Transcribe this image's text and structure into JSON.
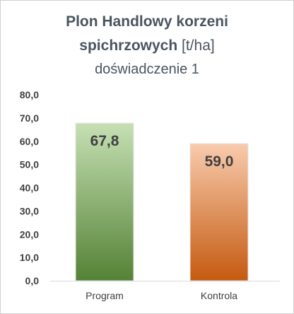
{
  "chart_data": {
    "type": "bar",
    "title_line1": "Plon Handlowy korzeni",
    "title_line2_bold": "spichrzowych",
    "title_line2_unit": " [t/ha]",
    "subtitle": "doświadczenie 1",
    "categories": [
      "Program",
      "Kontrola"
    ],
    "values": [
      67.8,
      59.0
    ],
    "value_labels": [
      "67,8",
      "59,0"
    ],
    "y_ticks": [
      "0,0",
      "10,0",
      "20,0",
      "30,0",
      "40,0",
      "50,0",
      "60,0",
      "70,0",
      "80,0"
    ],
    "ylim": [
      0,
      80
    ],
    "grid": false,
    "legend": "none",
    "colors": {
      "program_top": "#c6e0b4",
      "program_bottom": "#548235",
      "kontrola_top": "#f8cbad",
      "kontrola_bottom": "#c55a11",
      "text": "#404040",
      "axis": "#d9d9d9"
    }
  }
}
